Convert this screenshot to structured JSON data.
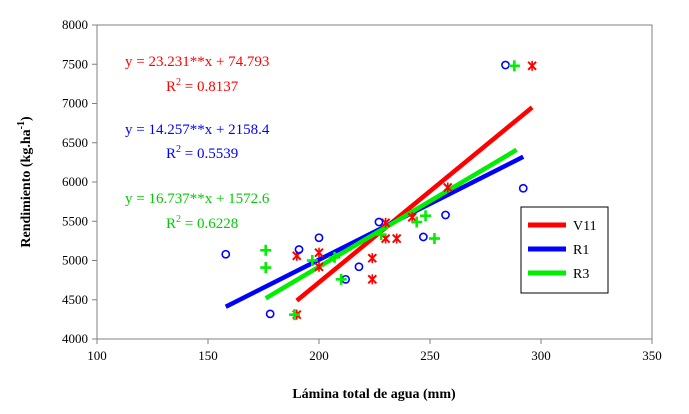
{
  "chart_data": {
    "type": "scatter",
    "xlabel": "Lámina total de agua (mm)",
    "ylabel": "Rendimiento (kg.ha",
    "ylabel_sup": "-1",
    "ylabel_close": ")",
    "xlim": [
      100,
      350
    ],
    "ylim": [
      4000,
      8000
    ],
    "xticks": [
      "100",
      "150",
      "200",
      "250",
      "300",
      "350"
    ],
    "yticks": [
      "4000",
      "4500",
      "5000",
      "5500",
      "6000",
      "6500",
      "7000",
      "7500",
      "8000"
    ],
    "grid": false,
    "legend_position": "right",
    "series": [
      {
        "name": "V11",
        "color": "#ff0000",
        "marker": "x-star",
        "points": [
          [
            190,
            4310
          ],
          [
            190,
            5060
          ],
          [
            200,
            4920
          ],
          [
            200,
            5100
          ],
          [
            224,
            4760
          ],
          [
            224,
            5030
          ],
          [
            230,
            5280
          ],
          [
            230,
            5480
          ],
          [
            235,
            5280
          ],
          [
            242,
            5550
          ],
          [
            258,
            5930
          ],
          [
            296,
            7480
          ]
        ],
        "fit": {
          "x": [
            190,
            296
          ],
          "y": [
            4488.7,
            6951.2
          ]
        },
        "equation": "y = 23.231**x + 74.793",
        "r2_label": "R",
        "r2_sup": "2",
        "r2_value": " = 0.8137"
      },
      {
        "name": "R1",
        "color": "#0000ff",
        "marker": "circle",
        "points": [
          [
            158,
            5080
          ],
          [
            178,
            4320
          ],
          [
            191,
            5140
          ],
          [
            200,
            5290
          ],
          [
            212,
            4760
          ],
          [
            218,
            4920
          ],
          [
            227,
            5490
          ],
          [
            247,
            5300
          ],
          [
            257,
            5580
          ],
          [
            284,
            7490
          ],
          [
            292,
            5920
          ]
        ],
        "fit": {
          "x": [
            158,
            292
          ],
          "y": [
            4411.0,
            6321.2
          ]
        },
        "equation": "y = 14.257**x + 2158.4",
        "r2_label": "R",
        "r2_sup": "2",
        "r2_value": " = 0.5539"
      },
      {
        "name": "R3",
        "color": "#00ee00",
        "marker": "plus",
        "points": [
          [
            176,
            4910
          ],
          [
            176,
            5130
          ],
          [
            189,
            4310
          ],
          [
            197,
            5000
          ],
          [
            207,
            5040
          ],
          [
            210,
            4760
          ],
          [
            228,
            5330
          ],
          [
            244,
            5490
          ],
          [
            248,
            5570
          ],
          [
            252,
            5280
          ],
          [
            288,
            7480
          ]
        ],
        "fit": {
          "x": [
            176,
            289
          ],
          "y": [
            4518.3,
            6409.6
          ]
        },
        "equation": "y = 16.737**x + 1572.6",
        "r2_label": "R",
        "r2_sup": "2",
        "r2_value": " = 0.6228"
      }
    ]
  }
}
